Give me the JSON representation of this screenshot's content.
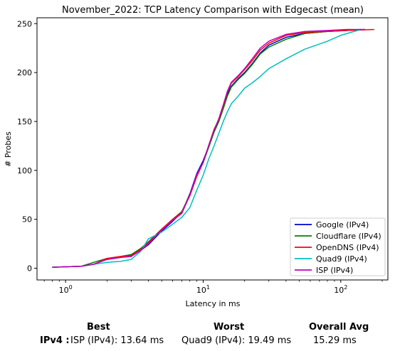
{
  "chart_data": {
    "type": "line",
    "title": "November_2022: TCP Latency Comparison with Edgecast (mean)",
    "xlabel": "Latency in ms",
    "ylabel": "# Probes",
    "xscale": "log",
    "xlim": [
      0.62,
      220
    ],
    "ylim": [
      -12,
      256
    ],
    "x_ticks": [
      1,
      10,
      100
    ],
    "x_tick_labels": [
      "10^0",
      "10^1",
      "10^2"
    ],
    "y_ticks": [
      0,
      50,
      100,
      150,
      200,
      250
    ],
    "grid": false,
    "legend_position": "lower-right",
    "series": [
      {
        "name": "Google (IPv4)",
        "color": "#0000cc",
        "points": [
          [
            0.8,
            1
          ],
          [
            1.3,
            2
          ],
          [
            1.6,
            4
          ],
          [
            2.0,
            9
          ],
          [
            2.5,
            11
          ],
          [
            3.0,
            13
          ],
          [
            3.5,
            18
          ],
          [
            4.0,
            24
          ],
          [
            5.0,
            38
          ],
          [
            6.0,
            48
          ],
          [
            7.0,
            57
          ],
          [
            8.0,
            76
          ],
          [
            9.0,
            97
          ],
          [
            10,
            110
          ],
          [
            11,
            125
          ],
          [
            12,
            140
          ],
          [
            13,
            152
          ],
          [
            14,
            165
          ],
          [
            15,
            178
          ],
          [
            16,
            186
          ],
          [
            18,
            194
          ],
          [
            20,
            200
          ],
          [
            23,
            210
          ],
          [
            26,
            220
          ],
          [
            30,
            228
          ],
          [
            40,
            236
          ],
          [
            55,
            240
          ],
          [
            80,
            242
          ],
          [
            110,
            243
          ],
          [
            150,
            244
          ]
        ]
      },
      {
        "name": "Cloudflare (IPv4)",
        "color": "#008000",
        "points": [
          [
            0.8,
            1
          ],
          [
            1.3,
            2
          ],
          [
            1.6,
            6
          ],
          [
            2.0,
            10
          ],
          [
            2.5,
            12
          ],
          [
            3.0,
            14
          ],
          [
            3.5,
            20
          ],
          [
            4.0,
            27
          ],
          [
            5.0,
            40
          ],
          [
            6.0,
            50
          ],
          [
            7.0,
            58
          ],
          [
            8.0,
            75
          ],
          [
            9.0,
            95
          ],
          [
            10,
            108
          ],
          [
            11,
            124
          ],
          [
            12,
            139
          ],
          [
            13,
            150
          ],
          [
            14,
            163
          ],
          [
            15,
            176
          ],
          [
            16,
            185
          ],
          [
            18,
            193
          ],
          [
            20,
            199
          ],
          [
            23,
            209
          ],
          [
            26,
            219
          ],
          [
            30,
            226
          ],
          [
            40,
            234
          ],
          [
            55,
            240
          ],
          [
            80,
            242
          ],
          [
            110,
            243
          ],
          [
            140,
            244
          ]
        ]
      },
      {
        "name": "OpenDNS (IPv4)",
        "color": "#ff0000",
        "points": [
          [
            0.8,
            1
          ],
          [
            1.3,
            2
          ],
          [
            1.6,
            4
          ],
          [
            2.0,
            10
          ],
          [
            2.5,
            12
          ],
          [
            3.0,
            13
          ],
          [
            3.5,
            19
          ],
          [
            4.0,
            26
          ],
          [
            5.0,
            40
          ],
          [
            6.0,
            50
          ],
          [
            7.0,
            57
          ],
          [
            8.0,
            74
          ],
          [
            9.0,
            94
          ],
          [
            10,
            108
          ],
          [
            11,
            126
          ],
          [
            12,
            142
          ],
          [
            13,
            152
          ],
          [
            14,
            166
          ],
          [
            15,
            180
          ],
          [
            16,
            189
          ],
          [
            18,
            196
          ],
          [
            20,
            203
          ],
          [
            23,
            213
          ],
          [
            26,
            223
          ],
          [
            30,
            230
          ],
          [
            40,
            238
          ],
          [
            55,
            241
          ],
          [
            80,
            242
          ],
          [
            110,
            243
          ],
          [
            175,
            244
          ]
        ]
      },
      {
        "name": "Quad9 (IPv4)",
        "color": "#00bfbf",
        "points": [
          [
            0.8,
            1
          ],
          [
            1.3,
            2
          ],
          [
            1.6,
            4
          ],
          [
            2.0,
            6
          ],
          [
            2.5,
            7
          ],
          [
            3.0,
            9
          ],
          [
            3.5,
            17
          ],
          [
            4.0,
            30
          ],
          [
            5.0,
            37
          ],
          [
            6.0,
            45
          ],
          [
            7.0,
            52
          ],
          [
            8.0,
            62
          ],
          [
            9.0,
            80
          ],
          [
            10,
            95
          ],
          [
            11,
            112
          ],
          [
            12,
            125
          ],
          [
            13,
            138
          ],
          [
            14,
            150
          ],
          [
            15,
            160
          ],
          [
            16,
            168
          ],
          [
            18,
            176
          ],
          [
            20,
            184
          ],
          [
            23,
            190
          ],
          [
            26,
            196
          ],
          [
            30,
            204
          ],
          [
            40,
            214
          ],
          [
            55,
            224
          ],
          [
            80,
            232
          ],
          [
            100,
            238
          ],
          [
            140,
            244
          ]
        ]
      },
      {
        "name": "ISP (IPv4)",
        "color": "#bf00bf",
        "points": [
          [
            0.8,
            1
          ],
          [
            1.3,
            2
          ],
          [
            1.6,
            4
          ],
          [
            2.0,
            9
          ],
          [
            2.5,
            11
          ],
          [
            3.0,
            12
          ],
          [
            3.5,
            18
          ],
          [
            4.0,
            25
          ],
          [
            5.0,
            39
          ],
          [
            6.0,
            49
          ],
          [
            7.0,
            56
          ],
          [
            8.0,
            75
          ],
          [
            9.0,
            96
          ],
          [
            10,
            108
          ],
          [
            11,
            126
          ],
          [
            12,
            141
          ],
          [
            13,
            153
          ],
          [
            14,
            167
          ],
          [
            15,
            181
          ],
          [
            16,
            190
          ],
          [
            18,
            197
          ],
          [
            20,
            204
          ],
          [
            23,
            215
          ],
          [
            26,
            225
          ],
          [
            30,
            232
          ],
          [
            40,
            239
          ],
          [
            55,
            242
          ],
          [
            80,
            243
          ],
          [
            110,
            244
          ],
          [
            150,
            244
          ]
        ]
      }
    ]
  },
  "stats": {
    "best_header": "Best",
    "worst_header": "Worst",
    "avg_header": "Overall Avg",
    "row_label": "IPv4 :",
    "best_value": "ISP (IPv4): 13.64 ms",
    "worst_value": "Quad9 (IPv4): 19.49 ms",
    "avg_value": "15.29 ms"
  }
}
